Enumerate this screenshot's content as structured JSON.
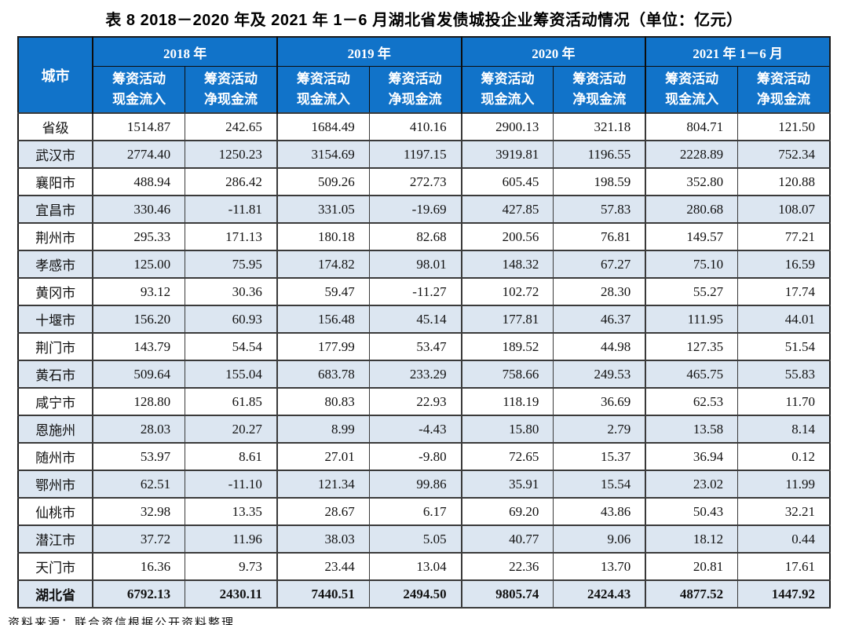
{
  "page": {
    "title": "表 8  2018－2020 年及 2021 年 1－6 月湖北省发债城投企业筹资活动情况（单位：亿元）",
    "source_note": "资料来源：联合资信根据公开资料整理"
  },
  "colors": {
    "header_bg": "#1173C9",
    "header_text": "#FFFFFF",
    "stripe_bg": "#DCE6F1",
    "border_dark": "#1A1A1A",
    "border_inner": "#3A3A3A"
  },
  "table": {
    "city_header": "城市",
    "year_groups": [
      {
        "label": "2018 年",
        "sub": [
          "筹资活动\n现金流入",
          "筹资活动\n净现金流"
        ]
      },
      {
        "label": "2019 年",
        "sub": [
          "筹资活动\n现金流入",
          "筹资活动\n净现金流"
        ]
      },
      {
        "label": "2020 年",
        "sub": [
          "筹资活动\n现金流入",
          "筹资活动\n净现金流"
        ]
      },
      {
        "label": "2021 年 1－6 月",
        "sub": [
          "筹资活动\n现金流入",
          "筹资活动\n净现金流"
        ]
      }
    ],
    "rows": [
      {
        "city": "省级",
        "bold": false,
        "values": [
          "1514.87",
          "242.65",
          "1684.49",
          "410.16",
          "2900.13",
          "321.18",
          "804.71",
          "121.50"
        ]
      },
      {
        "city": "武汉市",
        "bold": false,
        "values": [
          "2774.40",
          "1250.23",
          "3154.69",
          "1197.15",
          "3919.81",
          "1196.55",
          "2228.89",
          "752.34"
        ]
      },
      {
        "city": "襄阳市",
        "bold": false,
        "values": [
          "488.94",
          "286.42",
          "509.26",
          "272.73",
          "605.45",
          "198.59",
          "352.80",
          "120.88"
        ]
      },
      {
        "city": "宜昌市",
        "bold": false,
        "values": [
          "330.46",
          "-11.81",
          "331.05",
          "-19.69",
          "427.85",
          "57.83",
          "280.68",
          "108.07"
        ]
      },
      {
        "city": "荆州市",
        "bold": false,
        "values": [
          "295.33",
          "171.13",
          "180.18",
          "82.68",
          "200.56",
          "76.81",
          "149.57",
          "77.21"
        ]
      },
      {
        "city": "孝感市",
        "bold": false,
        "values": [
          "125.00",
          "75.95",
          "174.82",
          "98.01",
          "148.32",
          "67.27",
          "75.10",
          "16.59"
        ]
      },
      {
        "city": "黄冈市",
        "bold": false,
        "values": [
          "93.12",
          "30.36",
          "59.47",
          "-11.27",
          "102.72",
          "28.30",
          "55.27",
          "17.74"
        ]
      },
      {
        "city": "十堰市",
        "bold": false,
        "values": [
          "156.20",
          "60.93",
          "156.48",
          "45.14",
          "177.81",
          "46.37",
          "111.95",
          "44.01"
        ]
      },
      {
        "city": "荆门市",
        "bold": false,
        "values": [
          "143.79",
          "54.54",
          "177.99",
          "53.47",
          "189.52",
          "44.98",
          "127.35",
          "51.54"
        ]
      },
      {
        "city": "黄石市",
        "bold": false,
        "values": [
          "509.64",
          "155.04",
          "683.78",
          "233.29",
          "758.66",
          "249.53",
          "465.75",
          "55.83"
        ]
      },
      {
        "city": "咸宁市",
        "bold": false,
        "values": [
          "128.80",
          "61.85",
          "80.83",
          "22.93",
          "118.19",
          "36.69",
          "62.53",
          "11.70"
        ]
      },
      {
        "city": "恩施州",
        "bold": false,
        "values": [
          "28.03",
          "20.27",
          "8.99",
          "-4.43",
          "15.80",
          "2.79",
          "13.58",
          "8.14"
        ]
      },
      {
        "city": "随州市",
        "bold": false,
        "values": [
          "53.97",
          "8.61",
          "27.01",
          "-9.80",
          "72.65",
          "15.37",
          "36.94",
          "0.12"
        ]
      },
      {
        "city": "鄂州市",
        "bold": false,
        "values": [
          "62.51",
          "-11.10",
          "121.34",
          "99.86",
          "35.91",
          "15.54",
          "23.02",
          "11.99"
        ]
      },
      {
        "city": "仙桃市",
        "bold": false,
        "values": [
          "32.98",
          "13.35",
          "28.67",
          "6.17",
          "69.20",
          "43.86",
          "50.43",
          "32.21"
        ]
      },
      {
        "city": "潜江市",
        "bold": false,
        "values": [
          "37.72",
          "11.96",
          "38.03",
          "5.05",
          "40.77",
          "9.06",
          "18.12",
          "0.44"
        ]
      },
      {
        "city": "天门市",
        "bold": false,
        "values": [
          "16.36",
          "9.73",
          "23.44",
          "13.04",
          "22.36",
          "13.70",
          "20.81",
          "17.61"
        ]
      },
      {
        "city": "湖北省",
        "bold": true,
        "values": [
          "6792.13",
          "2430.11",
          "7440.51",
          "2494.50",
          "9805.74",
          "2424.43",
          "4877.52",
          "1447.92"
        ]
      }
    ]
  },
  "chart_data": {
    "type": "table",
    "title": "表 8  2018－2020 年及 2021 年 1－6 月湖北省发债城投企业筹资活动情况（单位：亿元）",
    "column_groups": [
      "2018 年",
      "2019 年",
      "2020 年",
      "2021 年 1－6 月"
    ],
    "sub_columns": [
      "筹资活动现金流入",
      "筹资活动净现金流"
    ],
    "categories": [
      "省级",
      "武汉市",
      "襄阳市",
      "宜昌市",
      "荆州市",
      "孝感市",
      "黄冈市",
      "十堰市",
      "荆门市",
      "黄石市",
      "咸宁市",
      "恩施州",
      "随州市",
      "鄂州市",
      "仙桃市",
      "潜江市",
      "天门市",
      "湖北省"
    ],
    "series": [
      {
        "name": "2018 筹资活动现金流入",
        "values": [
          1514.87,
          2774.4,
          488.94,
          330.46,
          295.33,
          125.0,
          93.12,
          156.2,
          143.79,
          509.64,
          128.8,
          28.03,
          53.97,
          62.51,
          32.98,
          37.72,
          16.36,
          6792.13
        ]
      },
      {
        "name": "2018 筹资活动净现金流",
        "values": [
          242.65,
          1250.23,
          286.42,
          -11.81,
          171.13,
          75.95,
          30.36,
          60.93,
          54.54,
          155.04,
          61.85,
          20.27,
          8.61,
          -11.1,
          13.35,
          11.96,
          9.73,
          2430.11
        ]
      },
      {
        "name": "2019 筹资活动现金流入",
        "values": [
          1684.49,
          3154.69,
          509.26,
          331.05,
          180.18,
          174.82,
          59.47,
          156.48,
          177.99,
          683.78,
          80.83,
          8.99,
          27.01,
          121.34,
          28.67,
          38.03,
          23.44,
          7440.51
        ]
      },
      {
        "name": "2019 筹资活动净现金流",
        "values": [
          410.16,
          1197.15,
          272.73,
          -19.69,
          82.68,
          98.01,
          -11.27,
          45.14,
          53.47,
          233.29,
          22.93,
          -4.43,
          -9.8,
          99.86,
          6.17,
          5.05,
          13.04,
          2494.5
        ]
      },
      {
        "name": "2020 筹资活动现金流入",
        "values": [
          2900.13,
          3919.81,
          605.45,
          427.85,
          200.56,
          148.32,
          102.72,
          177.81,
          189.52,
          758.66,
          118.19,
          15.8,
          72.65,
          35.91,
          69.2,
          40.77,
          22.36,
          9805.74
        ]
      },
      {
        "name": "2020 筹资活动净现金流",
        "values": [
          321.18,
          1196.55,
          198.59,
          57.83,
          76.81,
          67.27,
          28.3,
          46.37,
          44.98,
          249.53,
          36.69,
          2.79,
          15.37,
          15.54,
          43.86,
          9.06,
          13.7,
          2424.43
        ]
      },
      {
        "name": "2021年1-6月 筹资活动现金流入",
        "values": [
          804.71,
          2228.89,
          352.8,
          280.68,
          149.57,
          75.1,
          55.27,
          111.95,
          127.35,
          465.75,
          62.53,
          13.58,
          36.94,
          23.02,
          50.43,
          18.12,
          20.81,
          4877.52
        ]
      },
      {
        "name": "2021年1-6月 筹资活动净现金流",
        "values": [
          121.5,
          752.34,
          120.88,
          108.07,
          77.21,
          16.59,
          17.74,
          44.01,
          51.54,
          55.83,
          11.7,
          8.14,
          0.12,
          11.99,
          32.21,
          0.44,
          17.61,
          1447.92
        ]
      }
    ],
    "source": "资料来源：联合资信根据公开资料整理"
  }
}
